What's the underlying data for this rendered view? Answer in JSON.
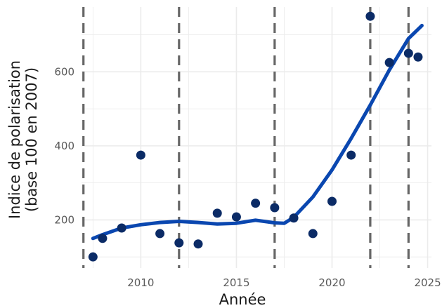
{
  "chart_data": {
    "type": "scatter",
    "xlabel": "Année",
    "ylabel_line1": "Indice de polarisation",
    "ylabel_line2": "(base 100 en 2007)",
    "xlim": [
      2006.9,
      2025.2
    ],
    "ylim": [
      70,
      775
    ],
    "x_ticks": [
      2010,
      2015,
      2020,
      2025
    ],
    "y_ticks": [
      200,
      400,
      600
    ],
    "x_minor_ticks": [
      2007.5,
      2012.5,
      2017.5,
      2022.5
    ],
    "y_minor_ticks": [
      100,
      300,
      500,
      700
    ],
    "grid": true,
    "colors": {
      "points": "#0b2b66",
      "smooth": "#0a47b0",
      "vlines": "#666666",
      "grid": "#ebebeb"
    },
    "vertical_lines": [
      2007,
      2012,
      2017,
      2022,
      2024
    ],
    "points": {
      "x": [
        2007.5,
        2008,
        2009,
        2010,
        2011,
        2012,
        2013,
        2014,
        2015,
        2016,
        2017,
        2018,
        2019,
        2020,
        2021,
        2022,
        2023,
        2024,
        2024.5
      ],
      "y": [
        100,
        150,
        178,
        375,
        163,
        138,
        135,
        218,
        208,
        245,
        233,
        205,
        163,
        250,
        375,
        750,
        625,
        650,
        640
      ]
    },
    "smooth": {
      "x": [
        2007.5,
        2008,
        2009,
        2010,
        2011,
        2012,
        2013,
        2014,
        2015,
        2016,
        2017,
        2017.5,
        2018,
        2019,
        2020,
        2021,
        2022,
        2023,
        2024,
        2024.7
      ],
      "y": [
        150,
        160,
        178,
        187,
        193,
        196,
        193,
        189,
        191,
        199,
        192,
        191,
        207,
        262,
        335,
        420,
        510,
        605,
        690,
        725
      ]
    }
  }
}
